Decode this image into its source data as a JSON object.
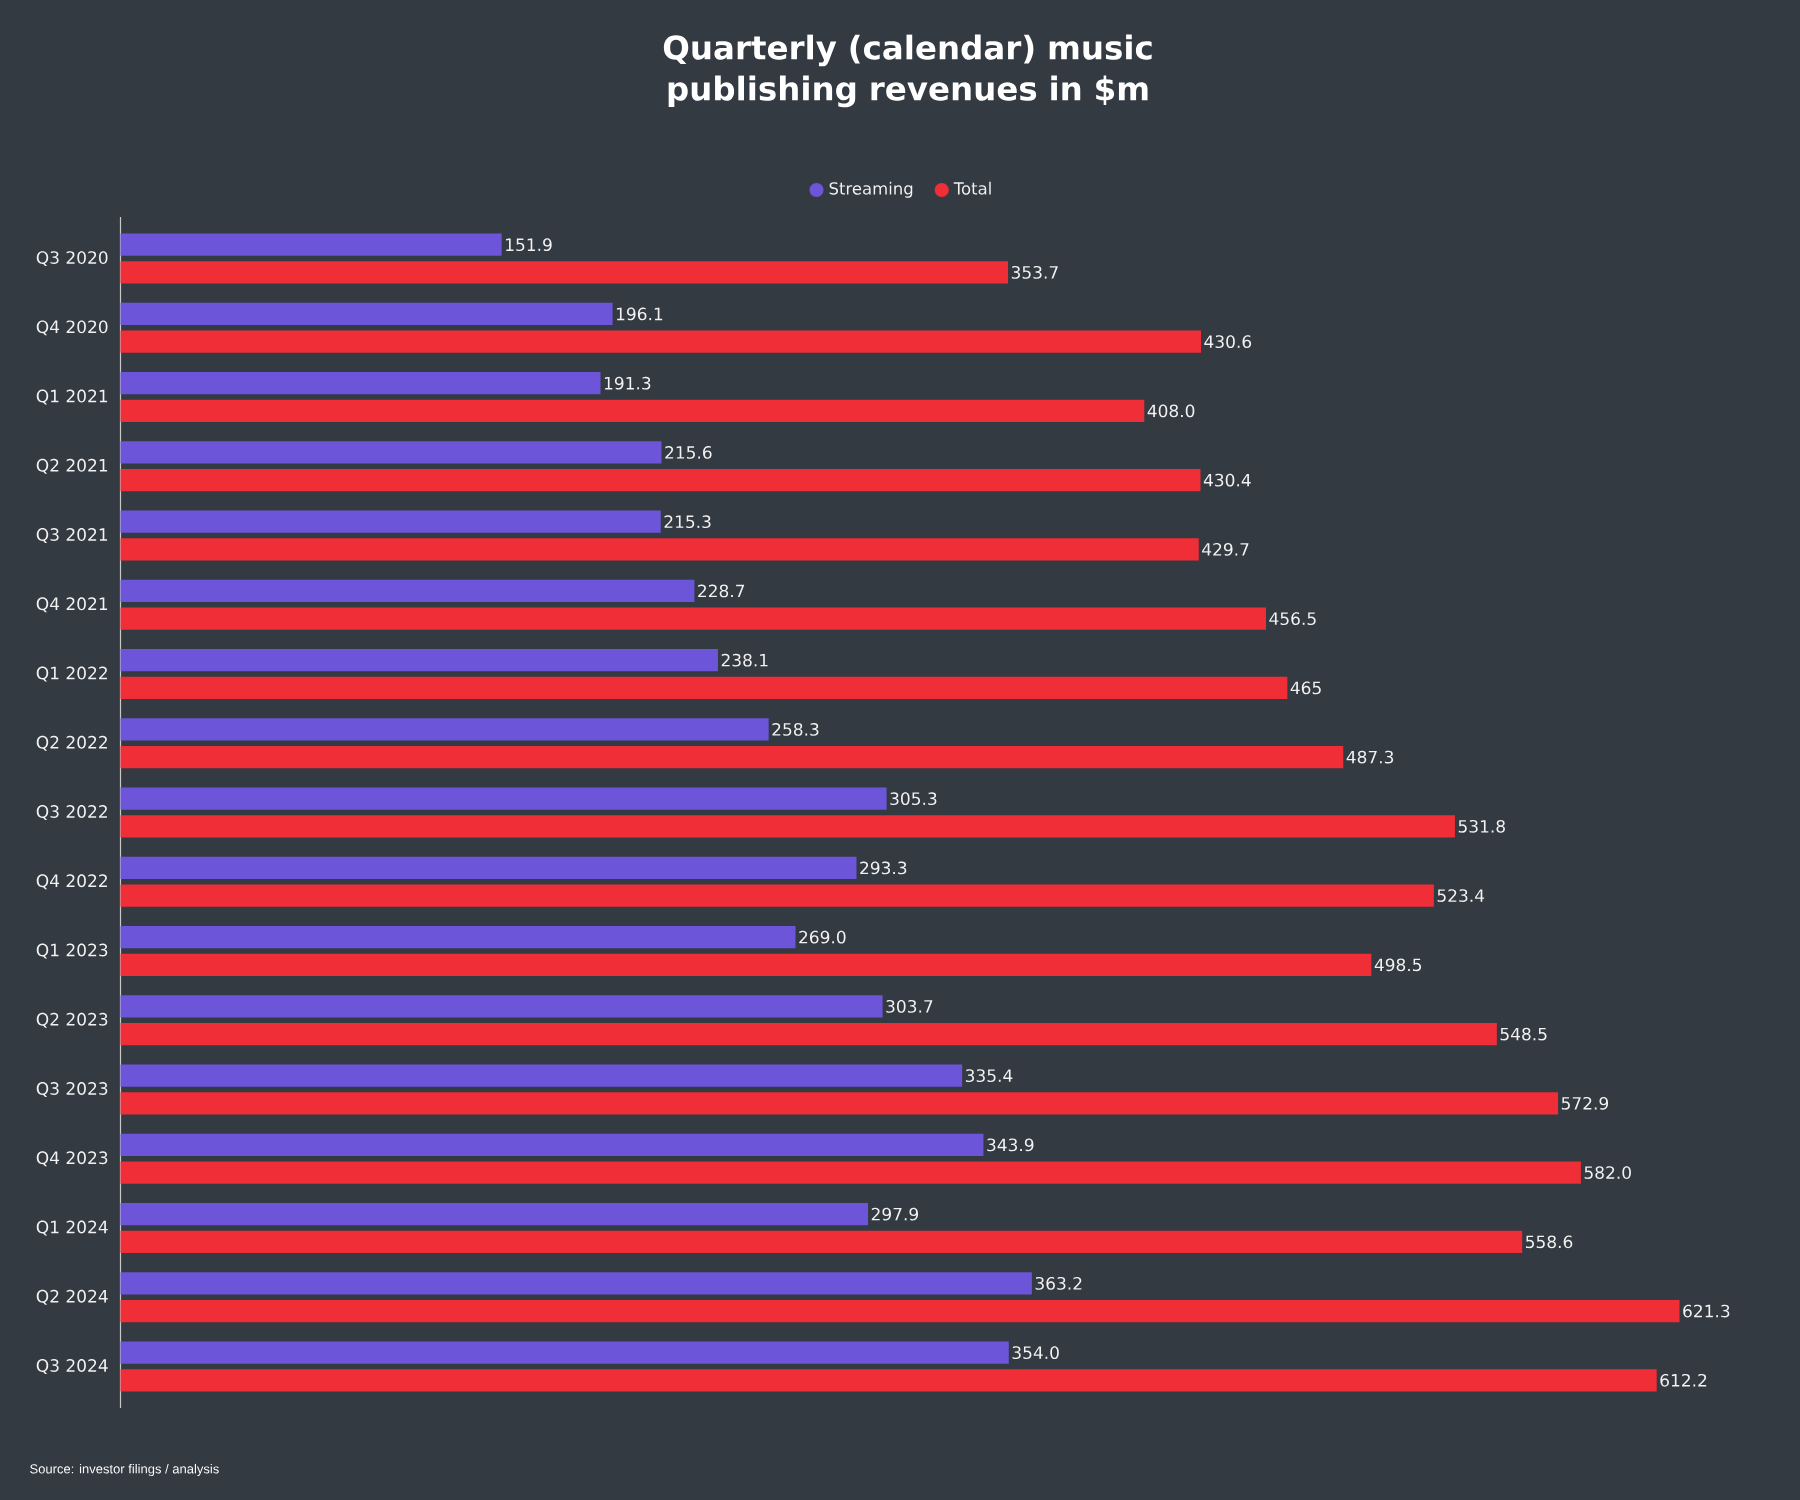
{
  "chart_data": {
    "type": "bar",
    "orientation": "horizontal",
    "title": "Quarterly (calendar) music publishing revenues in $m",
    "categories": [
      "Q3 2020",
      "Q4 2020",
      "Q1 2021",
      "Q2 2021",
      "Q3 2021",
      "Q4 2021",
      "Q1 2022",
      "Q2 2022",
      "Q3 2022",
      "Q4 2022",
      "Q1 2023",
      "Q2 2023",
      "Q3 2023",
      "Q4 2023",
      "Q1 2024",
      "Q2 2024",
      "Q3 2024"
    ],
    "series": [
      {
        "name": "Streaming",
        "color": "#6c55d9",
        "values": [
          151.9,
          196.1,
          191.3,
          215.6,
          215.3,
          228.7,
          238.1,
          258.3,
          305.3,
          293.3,
          269.0,
          303.7,
          335.4,
          343.9,
          297.9,
          363.2,
          354.0
        ],
        "value_labels": [
          "151.9",
          "196.1",
          "191.3",
          "215.6",
          "215.3",
          "228.7",
          "238.1",
          "258.3",
          "305.3",
          "293.3",
          "269.0",
          "303.7",
          "335.4",
          "343.9",
          "297.9",
          "363.2",
          "354.0"
        ]
      },
      {
        "name": "Total",
        "color": "#ef2e38",
        "values": [
          353.7,
          430.6,
          408.0,
          430.4,
          429.7,
          456.5,
          465,
          487.3,
          531.8,
          523.4,
          498.5,
          548.5,
          572.9,
          582.0,
          558.6,
          621.3,
          612.2
        ],
        "value_labels": [
          "353.7",
          "430.6",
          "408.0",
          "430.4",
          "429.7",
          "456.5",
          "465",
          "487.3",
          "531.8",
          "523.4",
          "498.5",
          "548.5",
          "572.9",
          "582.0",
          "558.6",
          "621.3",
          "612.2"
        ]
      }
    ],
    "legend": "top",
    "tick_labels": "y",
    "annotations": [
      "Source: investor filings / analysis"
    ]
  }
}
